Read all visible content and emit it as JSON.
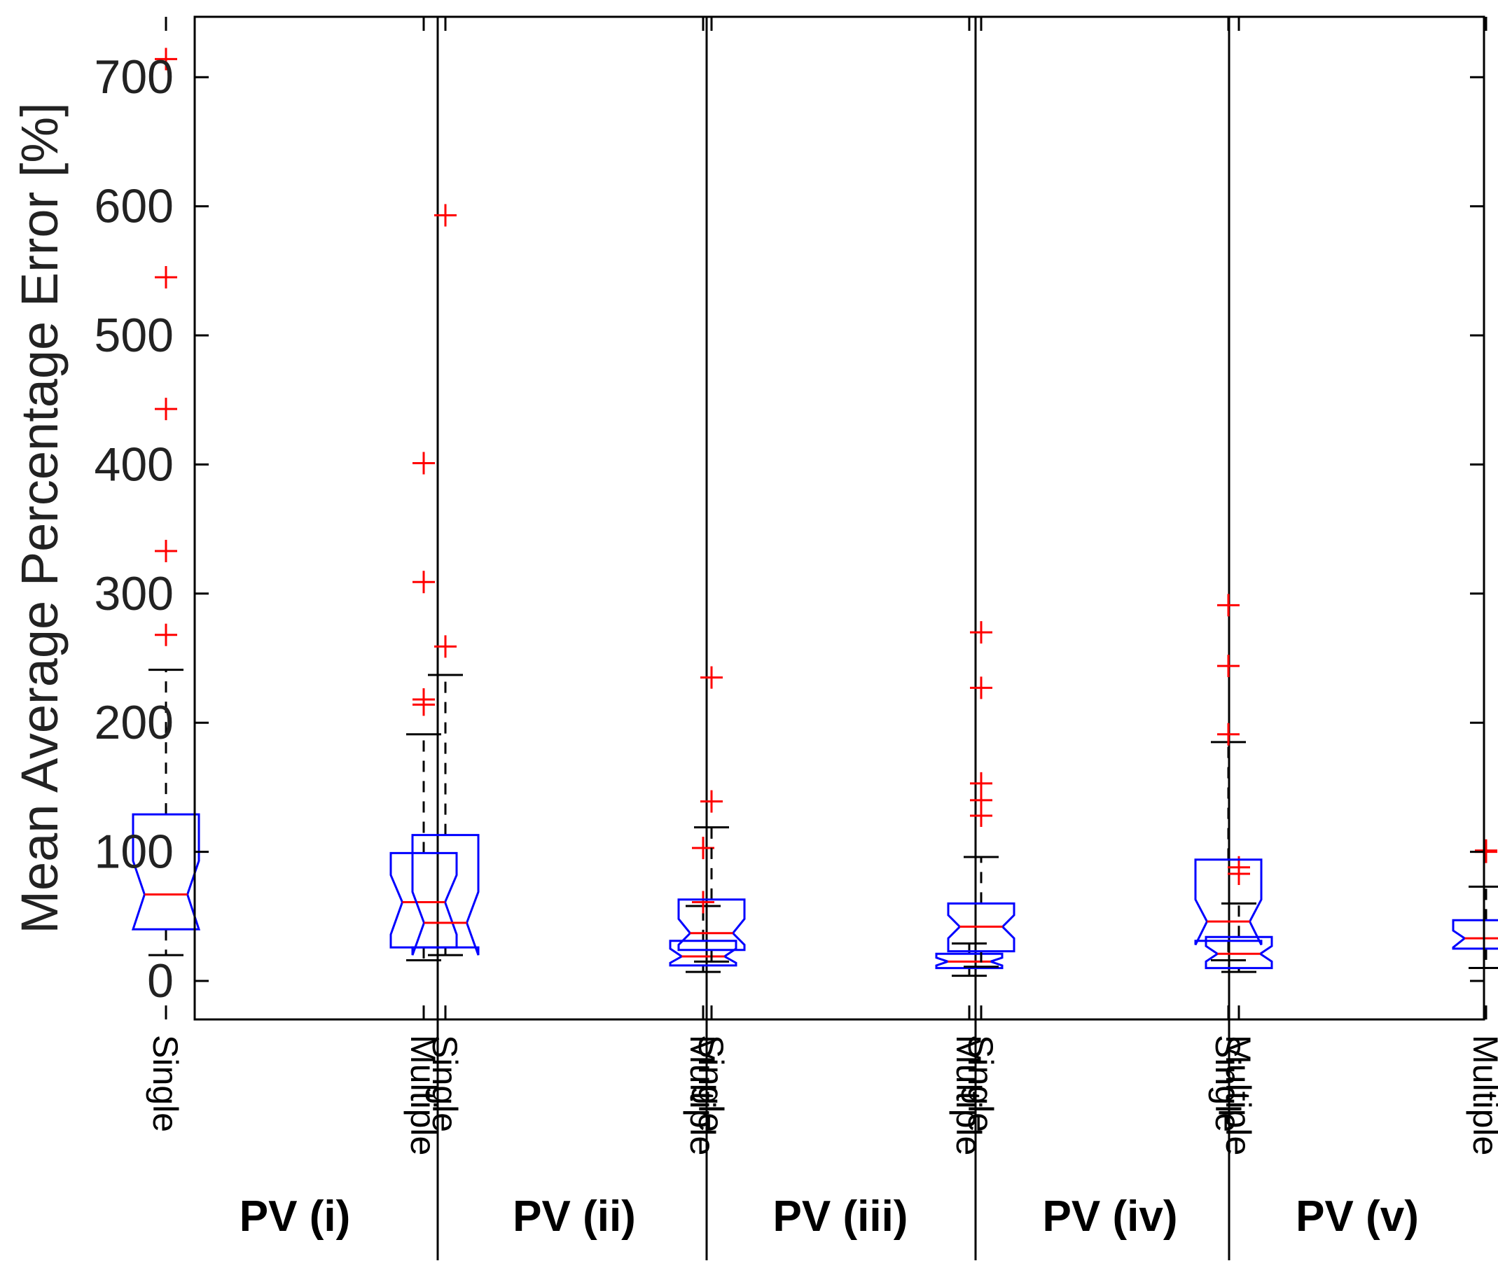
{
  "chart_data": {
    "type": "box",
    "ylabel": "Mean Average Percentage Error [%]",
    "xlabel": "",
    "ylim": [
      -30,
      750
    ],
    "yticks": [
      0,
      100,
      200,
      300,
      400,
      500,
      600,
      700
    ],
    "grid": false,
    "notched": true,
    "colors": {
      "box": "#0000ff",
      "median": "#ff0000",
      "outlier": "#ff0000",
      "whisker": "#000000",
      "axis": "#000000"
    },
    "groups": [
      {
        "label": "PV (i)",
        "boxes": [
          {
            "name": "Single",
            "whisker_low": 20,
            "q1": 40,
            "median": 67,
            "q3": 129,
            "whisker_high": 241,
            "notch_low": 40,
            "notch_high": 93,
            "outliers": [
              268,
              333,
              443,
              545,
              714
            ]
          },
          {
            "name": "Multiple",
            "whisker_low": 16,
            "q1": 26,
            "median": 61,
            "q3": 99,
            "whisker_high": 191,
            "notch_low": 36,
            "notch_high": 82,
            "outliers": [
              214,
              218,
              309,
              401
            ]
          }
        ]
      },
      {
        "label": "PV (ii)",
        "boxes": [
          {
            "name": "Single",
            "whisker_low": 20,
            "q1": 26,
            "median": 45,
            "q3": 113,
            "whisker_high": 237,
            "notch_low": 20,
            "notch_high": 69,
            "outliers": [
              259,
              593
            ]
          },
          {
            "name": "Multiple",
            "whisker_low": 7,
            "q1": 12,
            "median": 19,
            "q3": 31,
            "whisker_high": 58,
            "notch_low": 14,
            "notch_high": 25,
            "outliers": [
              61,
              103
            ]
          }
        ]
      },
      {
        "label": "PV (iii)",
        "boxes": [
          {
            "name": "Single",
            "whisker_low": 15,
            "q1": 24,
            "median": 37,
            "q3": 63,
            "whisker_high": 119,
            "notch_low": 28,
            "notch_high": 48,
            "outliers": [
              139,
              235
            ]
          },
          {
            "name": "Multiple",
            "whisker_low": 4,
            "q1": 10,
            "median": 15,
            "q3": 21,
            "whisker_high": 29,
            "notch_low": 12,
            "notch_high": 18,
            "outliers": []
          }
        ]
      },
      {
        "label": "PV (iv)",
        "boxes": [
          {
            "name": "Single",
            "whisker_low": 11,
            "q1": 23,
            "median": 42,
            "q3": 60,
            "whisker_high": 96,
            "notch_low": 33,
            "notch_high": 51,
            "outliers": [
              128,
              140,
              153,
              227,
              270
            ]
          },
          {
            "name": "Multiple",
            "whisker_low": 7,
            "q1": 10,
            "median": 21,
            "q3": 34,
            "whisker_high": 60,
            "notch_low": 15,
            "notch_high": 27,
            "outliers": [
              83,
              88
            ]
          }
        ]
      },
      {
        "label": "PV (v)",
        "boxes": [
          {
            "name": "Single",
            "whisker_low": 16,
            "q1": 31,
            "median": 46,
            "q3": 94,
            "whisker_high": 185,
            "notch_low": 28,
            "notch_high": 63,
            "outliers": [
              191,
              244,
              291
            ]
          },
          {
            "name": "Multiple",
            "whisker_low": 10,
            "q1": 25,
            "median": 33,
            "q3": 47,
            "whisker_high": 73,
            "notch_low": 26,
            "notch_high": 39,
            "outliers": [
              100,
              101
            ]
          }
        ]
      }
    ]
  }
}
